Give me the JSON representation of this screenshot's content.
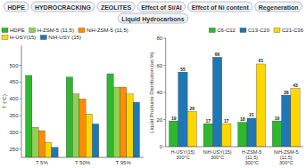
{
  "chart_data": [
    {
      "type": "bar",
      "ylabel": "T (°C)",
      "categories": [
        "T 5%",
        "T 50%",
        "T 95%"
      ],
      "series": [
        {
          "name": "HDPE",
          "color": "#2db82d",
          "values": [
            470,
            465,
            475
          ]
        },
        {
          "name": "H-ZSM-5 (11,5)",
          "color": "#92d050",
          "values": [
            315,
            415,
            435
          ]
        },
        {
          "name": "NiH-ZSM-5 (11,5)",
          "color": "#ff8c00",
          "values": [
            305,
            400,
            435
          ]
        },
        {
          "name": "H-USY(15)",
          "color": "#ffd700",
          "values": [
            270,
            355,
            415
          ]
        },
        {
          "name": "NiH-USY (15)",
          "color": "#1f77b4",
          "values": [
            255,
            325,
            390
          ]
        }
      ],
      "ylim": [
        225,
        560
      ],
      "yticks": [
        250,
        300,
        350,
        400,
        450,
        500
      ],
      "grid": false,
      "legend": "upper left",
      "annotations": [
        "HDPE",
        "HYDROCRACKING",
        "ZEOLITES",
        "Effect of Si/Al",
        "Effect of Ni content",
        "Regeneration",
        "Liquid Hydrocarbons"
      ]
    },
    {
      "type": "bar",
      "ylabel": "Liquid Products Distribution (wt.%)",
      "categories": [
        "H-USY(15)\n300°C",
        "NiH-USY(15)\n300°C",
        "H-ZSM-5 (11,5)\n300°C",
        "NiH-ZSM-5 (11,5)\n300°C"
      ],
      "series": [
        {
          "name": "C6-C12",
          "color": "#2db82d",
          "values": [
            19,
            17,
            18,
            19
          ]
        },
        {
          "name": "C13-C20",
          "color": "#1f77b4",
          "values": [
            55,
            66,
            21,
            38
          ]
        },
        {
          "name": "C21-C36",
          "color": "#ffd700",
          "values": [
            26,
            17,
            61,
            43
          ]
        }
      ],
      "ylim": [
        0,
        80
      ],
      "yticks": [
        0,
        20,
        40,
        60,
        80
      ],
      "grid": false,
      "legend": "upper right",
      "data_labels": true
    }
  ]
}
